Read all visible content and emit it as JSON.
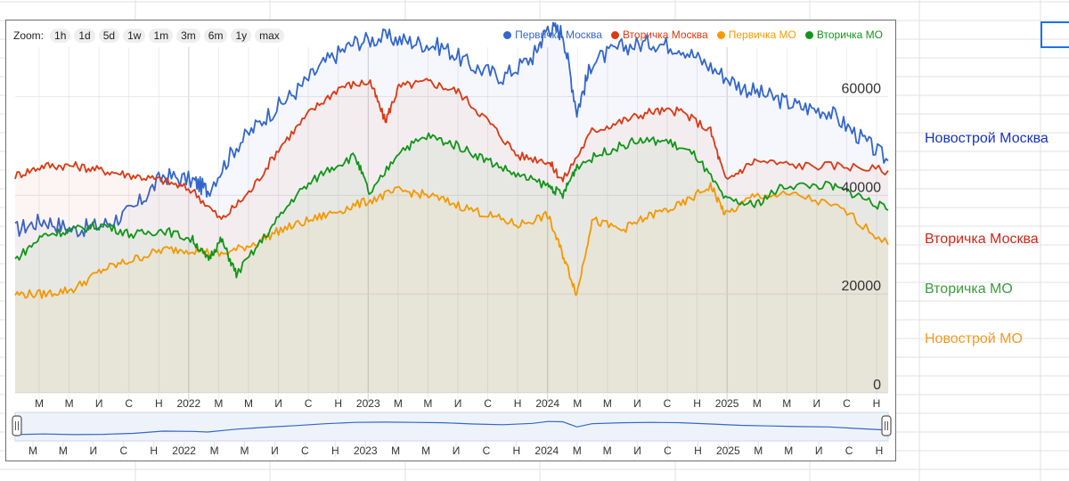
{
  "zoom": {
    "label": "Zoom:",
    "buttons": [
      "1h",
      "1d",
      "5d",
      "1w",
      "1m",
      "3m",
      "6m",
      "1y",
      "max"
    ]
  },
  "chart_data": {
    "type": "line",
    "y_ticks": [
      "0",
      "20000",
      "40000",
      "60000"
    ],
    "ylim": [
      0,
      70000
    ],
    "x_tick_labels": [
      "М",
      "М",
      "И",
      "С",
      "Н",
      "2022",
      "М",
      "М",
      "И",
      "С",
      "Н",
      "2023",
      "М",
      "М",
      "И",
      "С",
      "Н",
      "2024",
      "М",
      "М",
      "И",
      "С",
      "Н",
      "2025",
      "М",
      "М",
      "И",
      "С",
      "Н"
    ],
    "x_range": [
      "2021-01-01",
      "2025-12-01"
    ],
    "legend_position": "top-right",
    "series": [
      {
        "name": "Первичка Москва",
        "color": "#3366cc",
        "points": [
          [
            "2021-01-01",
            33000
          ],
          [
            "2021-03-01",
            35000
          ],
          [
            "2021-05-01",
            33000
          ],
          [
            "2021-07-01",
            34000
          ],
          [
            "2021-09-01",
            37000
          ],
          [
            "2021-11-01",
            44000
          ],
          [
            "2022-01-01",
            43000
          ],
          [
            "2022-02-01",
            41000
          ],
          [
            "2022-04-01",
            50000
          ],
          [
            "2022-06-01",
            56000
          ],
          [
            "2022-08-01",
            61000
          ],
          [
            "2022-10-01",
            67000
          ],
          [
            "2022-12-01",
            71000
          ],
          [
            "2023-02-01",
            72000
          ],
          [
            "2023-04-01",
            71000
          ],
          [
            "2023-06-01",
            70000
          ],
          [
            "2023-08-01",
            66000
          ],
          [
            "2023-10-01",
            64000
          ],
          [
            "2023-12-01",
            68000
          ],
          [
            "2024-01-01",
            74000
          ],
          [
            "2024-02-01",
            73000
          ],
          [
            "2024-03-01",
            57000
          ],
          [
            "2024-04-01",
            67000
          ],
          [
            "2024-06-01",
            70000
          ],
          [
            "2024-08-01",
            71000
          ],
          [
            "2024-10-01",
            70000
          ],
          [
            "2024-12-01",
            66000
          ],
          [
            "2025-02-01",
            62000
          ],
          [
            "2025-04-01",
            60000
          ],
          [
            "2025-06-01",
            58000
          ],
          [
            "2025-08-01",
            57000
          ],
          [
            "2025-10-01",
            52000
          ],
          [
            "2025-12-01",
            47000
          ]
        ]
      },
      {
        "name": "Вторичка Москва",
        "color": "#dc3912",
        "points": [
          [
            "2021-01-01",
            44000
          ],
          [
            "2021-03-01",
            46000
          ],
          [
            "2021-05-01",
            46000
          ],
          [
            "2021-07-01",
            45000
          ],
          [
            "2021-09-01",
            44000
          ],
          [
            "2021-11-01",
            43000
          ],
          [
            "2022-01-01",
            41000
          ],
          [
            "2022-03-01",
            35000
          ],
          [
            "2022-05-01",
            41000
          ],
          [
            "2022-07-01",
            50000
          ],
          [
            "2022-09-01",
            57000
          ],
          [
            "2022-11-01",
            62000
          ],
          [
            "2023-01-01",
            63000
          ],
          [
            "2023-02-01",
            55000
          ],
          [
            "2023-03-01",
            62000
          ],
          [
            "2023-05-01",
            63000
          ],
          [
            "2023-07-01",
            61000
          ],
          [
            "2023-09-01",
            55000
          ],
          [
            "2023-11-01",
            48000
          ],
          [
            "2024-01-01",
            47000
          ],
          [
            "2024-02-01",
            43000
          ],
          [
            "2024-04-01",
            53000
          ],
          [
            "2024-06-01",
            55000
          ],
          [
            "2024-08-01",
            57000
          ],
          [
            "2024-10-01",
            57000
          ],
          [
            "2024-12-01",
            53000
          ],
          [
            "2025-01-01",
            43000
          ],
          [
            "2025-03-01",
            47000
          ],
          [
            "2025-06-01",
            46000
          ],
          [
            "2025-09-01",
            46000
          ],
          [
            "2025-12-01",
            45000
          ]
        ]
      },
      {
        "name": "Первичка МО",
        "color": "#ff9900",
        "points": [
          [
            "2021-01-01",
            20000
          ],
          [
            "2021-03-01",
            20000
          ],
          [
            "2021-05-01",
            21000
          ],
          [
            "2021-07-01",
            25000
          ],
          [
            "2021-09-01",
            27000
          ],
          [
            "2021-11-01",
            29000
          ],
          [
            "2022-01-01",
            29000
          ],
          [
            "2022-03-01",
            28000
          ],
          [
            "2022-05-01",
            30000
          ],
          [
            "2022-07-01",
            33000
          ],
          [
            "2022-09-01",
            35000
          ],
          [
            "2022-11-01",
            37000
          ],
          [
            "2023-01-01",
            39000
          ],
          [
            "2023-03-01",
            41000
          ],
          [
            "2023-05-01",
            40000
          ],
          [
            "2023-07-01",
            38000
          ],
          [
            "2023-09-01",
            36000
          ],
          [
            "2023-11-01",
            34000
          ],
          [
            "2024-01-01",
            36000
          ],
          [
            "2024-02-01",
            28000
          ],
          [
            "2024-03-01",
            20000
          ],
          [
            "2024-04-01",
            35000
          ],
          [
            "2024-06-01",
            33000
          ],
          [
            "2024-08-01",
            36000
          ],
          [
            "2024-10-01",
            38000
          ],
          [
            "2024-12-01",
            42000
          ],
          [
            "2025-01-01",
            36000
          ],
          [
            "2025-03-01",
            40000
          ],
          [
            "2025-06-01",
            40000
          ],
          [
            "2025-09-01",
            37000
          ],
          [
            "2025-12-01",
            30000
          ]
        ]
      },
      {
        "name": "Вторичка МО",
        "color": "#109618",
        "points": [
          [
            "2021-01-01",
            27000
          ],
          [
            "2021-03-01",
            32000
          ],
          [
            "2021-05-01",
            33000
          ],
          [
            "2021-07-01",
            34000
          ],
          [
            "2021-09-01",
            32000
          ],
          [
            "2021-11-01",
            33000
          ],
          [
            "2022-01-01",
            31000
          ],
          [
            "2022-02-01",
            27000
          ],
          [
            "2022-03-01",
            31000
          ],
          [
            "2022-04-01",
            24000
          ],
          [
            "2022-06-01",
            32000
          ],
          [
            "2022-08-01",
            40000
          ],
          [
            "2022-10-01",
            45000
          ],
          [
            "2022-12-01",
            48000
          ],
          [
            "2023-01-01",
            40000
          ],
          [
            "2023-03-01",
            49000
          ],
          [
            "2023-05-01",
            52000
          ],
          [
            "2023-07-01",
            50000
          ],
          [
            "2023-09-01",
            47000
          ],
          [
            "2023-11-01",
            44000
          ],
          [
            "2024-01-01",
            42000
          ],
          [
            "2024-02-01",
            40000
          ],
          [
            "2024-03-01",
            46000
          ],
          [
            "2024-05-01",
            49000
          ],
          [
            "2024-07-01",
            51000
          ],
          [
            "2024-09-01",
            51000
          ],
          [
            "2024-11-01",
            48000
          ],
          [
            "2025-01-01",
            39000
          ],
          [
            "2025-03-01",
            38000
          ],
          [
            "2025-05-01",
            42000
          ],
          [
            "2025-08-01",
            42000
          ],
          [
            "2025-10-01",
            40000
          ],
          [
            "2025-12-01",
            37000
          ]
        ]
      }
    ]
  },
  "side_labels": [
    {
      "text": "Новострой Москва",
      "color": "#1a33b8"
    },
    {
      "text": "Вторичка Москва",
      "color": "#d0261a"
    },
    {
      "text": "Вторичка МО",
      "color": "#3c9a3c"
    },
    {
      "text": "Новострой МО",
      "color": "#f39a1f"
    }
  ]
}
